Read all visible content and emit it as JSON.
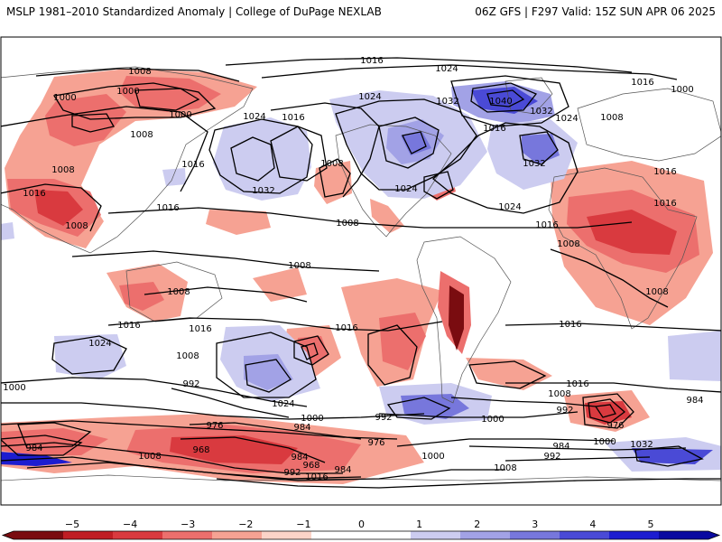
{
  "header": {
    "left_title": "MSLP 1981–2010 Standardized Anomaly | College of DuPage NEXLAB",
    "right_title": "06Z GFS | F297 Valid: 15Z SUN APR 06 2025"
  },
  "colorbar": {
    "ticks": [
      "−5",
      "−4",
      "−3",
      "−2",
      "−1",
      "0",
      "1",
      "2",
      "3",
      "4",
      "5"
    ],
    "colors": [
      "#7a0c10",
      "#c01e24",
      "#d93a3f",
      "#ec6f6d",
      "#f6a293",
      "#fcd4c8",
      "#ffffff",
      "#ffffff",
      "#ccccf0",
      "#a2a2e6",
      "#7777dc",
      "#4a4ad6",
      "#1d1dd0",
      "#0a0aa0"
    ]
  },
  "isobar_labels": [
    "1016",
    "1024",
    "1008",
    "1000",
    "1000",
    "1008",
    "1024",
    "1016",
    "1024",
    "1032",
    "1040",
    "1032",
    "1024",
    "1016",
    "1000",
    "1008",
    "1000",
    "1008",
    "1016",
    "1008",
    "1032",
    "1016",
    "1024",
    "1016",
    "1032",
    "1024",
    "1016",
    "1016",
    "1008",
    "1016",
    "1008",
    "1016",
    "1008",
    "1008",
    "1008",
    "1016",
    "1016",
    "1008",
    "1016",
    "1024",
    "1008",
    "1016",
    "1024",
    "1000",
    "992",
    "976",
    "984",
    "1000",
    "992",
    "968",
    "984",
    "976",
    "1008",
    "1000",
    "992",
    "968",
    "984",
    "1016",
    "984",
    "992",
    "1000",
    "1016",
    "1008",
    "984",
    "1032",
    "976",
    "1000",
    "992",
    "984",
    "1008"
  ]
}
